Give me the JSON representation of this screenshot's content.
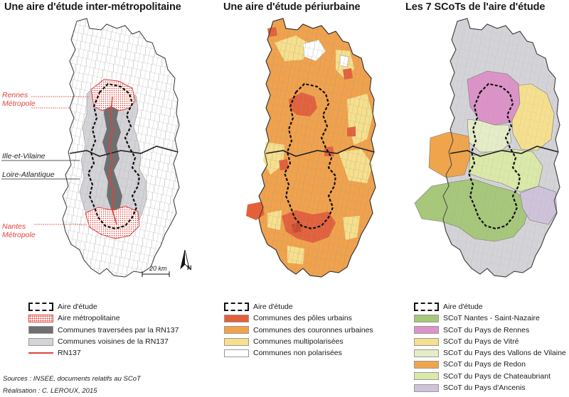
{
  "titles": {
    "map1": "Une aire d'étude inter-métropolitaine",
    "map2": "Une aire d'étude périurbaine",
    "map3": "Les 7 SCoTs de l'aire d'étude"
  },
  "map1": {
    "labels": {
      "rennes": "Rennes\nMétropole",
      "ille": "Ille-et-Vilaine",
      "loire": "Loire-Atlantique",
      "nantes": "Nantes\nMétropole"
    },
    "scale": "20 km",
    "north": "N",
    "colors": {
      "metro": "#e0423a",
      "crossed": "#6f6f6f",
      "neighbor": "#d4d4d8",
      "rn137": "#e0423a"
    }
  },
  "legend1": {
    "items": [
      {
        "label": "Aire d'étude",
        "swatch": "study"
      },
      {
        "label": "Aire métropolitaine",
        "swatch": "metro"
      },
      {
        "label": "Communes traversées par la RN137",
        "swatch": "#6f6f6f"
      },
      {
        "label": "Communes voisines de la RN137",
        "swatch": "#d4d4d8"
      },
      {
        "label": "RN137",
        "swatch": "line"
      }
    ]
  },
  "legend2": {
    "items": [
      {
        "label": "Aire d'étude",
        "swatch": "study"
      },
      {
        "label": "Communes des pôles urbains",
        "swatch": "#e3603a"
      },
      {
        "label": "Communes des couronnes urbaines",
        "swatch": "#f2a24b"
      },
      {
        "label": "Communes multipolarisées",
        "swatch": "#f7e08c"
      },
      {
        "label": "Communes non polarisées",
        "swatch": "#ffffff"
      }
    ]
  },
  "legend3": {
    "items": [
      {
        "label": "Aire d'étude",
        "swatch": "study"
      },
      {
        "label": "SCoT Nantes - Saint-Nazaire",
        "swatch": "#a7c77b"
      },
      {
        "label": "SCoT du Pays de Rennes",
        "swatch": "#dc93c8"
      },
      {
        "label": "SCoT du Pays de Vitré",
        "swatch": "#f5e08f"
      },
      {
        "label": "SCoT du Pays des Vallons de Vilaine",
        "swatch": "#e5edc8"
      },
      {
        "label": "SCoT du Pays de Redon",
        "swatch": "#f0a54c"
      },
      {
        "label": "SCoT du Pays de Chateaubriant",
        "swatch": "#dbe9a9"
      },
      {
        "label": "SCoT du Pays d'Ancenis",
        "swatch": "#cfc3da"
      }
    ]
  },
  "sources": {
    "line1": "Sources : INSEE, documents relatifs au SCoT",
    "line2": "Réalisation : C. LEROUX, 2015"
  }
}
